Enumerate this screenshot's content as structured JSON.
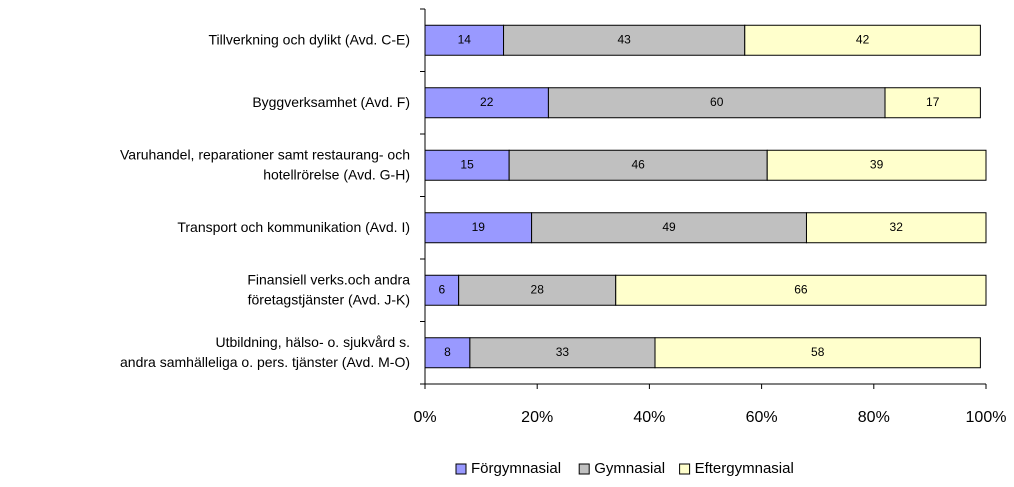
{
  "chart_data": {
    "type": "bar",
    "orientation": "horizontal",
    "stacked": true,
    "categories": [
      "Tillverkning och dylikt (Avd. C-E)",
      "Byggverksamhet (Avd. F)",
      "Varuhandel, reparationer samt restaurang- och\nhotellrörelse (Avd. G-H)",
      "Transport och kommunikation (Avd. I)",
      "Finansiell verks.och andra\nföretagstjänster (Avd. J-K)",
      "Utbildning, hälso- o. sjukvård s.\nandra samhälleliga o. pers. tjänster (Avd. M-O)"
    ],
    "series": [
      {
        "name": "Förgymnasial",
        "color": "#9999ff",
        "values": [
          14,
          22,
          15,
          19,
          6,
          8
        ]
      },
      {
        "name": "Gymnasial",
        "color": "#c0c0c0",
        "values": [
          43,
          60,
          46,
          49,
          28,
          33
        ]
      },
      {
        "name": "Eftergymnasial",
        "color": "#ffffcc",
        "values": [
          42,
          17,
          39,
          32,
          66,
          58
        ]
      }
    ],
    "xlim": [
      0,
      100
    ],
    "xticks": [
      {
        "value": 0,
        "label": "0%"
      },
      {
        "value": 20,
        "label": "20%"
      },
      {
        "value": 40,
        "label": "40%"
      },
      {
        "value": 60,
        "label": "60%"
      },
      {
        "value": 80,
        "label": "80%"
      },
      {
        "value": 100,
        "label": "100%"
      }
    ],
    "legend": "bottom"
  }
}
